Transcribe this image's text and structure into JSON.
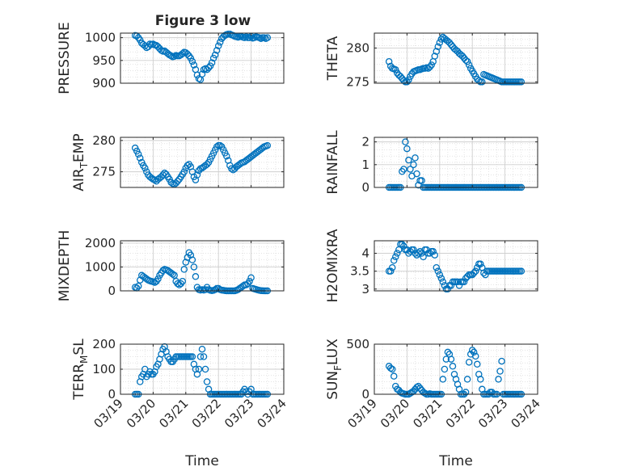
{
  "figure_title": "Figure 3 low",
  "x_axis": {
    "label": "Time",
    "tick_labels": [
      "03/19",
      "03/20",
      "03/21",
      "03/22",
      "03/23",
      "03/24"
    ]
  },
  "colors": {
    "marker": "#0072BD",
    "axis": "#262626",
    "grid": "#dadada"
  },
  "chart_data": [
    {
      "type": "scatter",
      "ylabel": "PRESSURE",
      "ylim": [
        900,
        1010
      ],
      "yticks": [
        900,
        950,
        1000
      ],
      "x": [
        0.45,
        0.5,
        0.55,
        0.6,
        0.65,
        0.7,
        0.75,
        0.8,
        0.85,
        0.9,
        0.95,
        1.0,
        1.05,
        1.1,
        1.15,
        1.2,
        1.25,
        1.3,
        1.35,
        1.4,
        1.45,
        1.5,
        1.55,
        1.6,
        1.65,
        1.7,
        1.75,
        1.8,
        1.85,
        1.9,
        1.95,
        2.0,
        2.05,
        2.1,
        2.15,
        2.2,
        2.25,
        2.3,
        2.35,
        2.4,
        2.45,
        2.5,
        2.55,
        2.6,
        2.65,
        2.7,
        2.75,
        2.8,
        2.85,
        2.9,
        2.95,
        3.0,
        3.05,
        3.1,
        3.15,
        3.2,
        3.25,
        3.3,
        3.35,
        3.4,
        3.45,
        3.5,
        3.55,
        3.6,
        3.65,
        3.7,
        3.75,
        3.8,
        3.85,
        3.9,
        3.95,
        4.0,
        4.05,
        4.1,
        4.15,
        4.2,
        4.25,
        4.3,
        4.35,
        4.4,
        4.45,
        4.5
      ],
      "y": [
        1005,
        1004,
        1000,
        995,
        988,
        985,
        982,
        978,
        980,
        986,
        985,
        986,
        984,
        983,
        980,
        976,
        972,
        970,
        971,
        968,
        965,
        962,
        960,
        958,
        959,
        961,
        960,
        960,
        962,
        965,
        968,
        967,
        964,
        960,
        955,
        948,
        940,
        930,
        918,
        910,
        908,
        920,
        930,
        932,
        930,
        934,
        938,
        945,
        955,
        962,
        972,
        982,
        990,
        998,
        1002,
        1005,
        1007,
        1008,
        1008,
        1006,
        1005,
        1003,
        1002,
        1001,
        1002,
        1003,
        1001,
        1000,
        1002,
        1000,
        1000,
        1003,
        999,
        1000,
        1002,
        1001,
        1000,
        998,
        1000,
        1000,
        998,
        1000
      ]
    },
    {
      "type": "scatter",
      "ylabel": "THETA",
      "ylim": [
        274.8,
        282.2
      ],
      "yticks": [
        275,
        280
      ],
      "x": [
        0.45,
        0.5,
        0.55,
        0.6,
        0.65,
        0.7,
        0.75,
        0.8,
        0.85,
        0.9,
        0.95,
        1.0,
        1.05,
        1.1,
        1.15,
        1.2,
        1.25,
        1.3,
        1.35,
        1.4,
        1.45,
        1.5,
        1.55,
        1.6,
        1.65,
        1.7,
        1.75,
        1.8,
        1.85,
        1.9,
        1.95,
        2.0,
        2.05,
        2.1,
        2.15,
        2.2,
        2.25,
        2.3,
        2.35,
        2.4,
        2.45,
        2.5,
        2.55,
        2.6,
        2.65,
        2.7,
        2.75,
        2.8,
        2.85,
        2.9,
        2.95,
        3.0,
        3.05,
        3.1,
        3.15,
        3.2,
        3.25,
        3.3,
        3.35,
        3.4,
        3.45,
        3.5,
        3.55,
        3.6,
        3.65,
        3.7,
        3.75,
        3.8,
        3.85,
        3.9,
        3.95,
        4.0,
        4.05,
        4.1,
        4.15,
        4.2,
        4.25,
        4.3,
        4.35,
        4.4,
        4.45,
        4.5
      ],
      "y": [
        278,
        277.3,
        277,
        276.9,
        276.8,
        276.3,
        276,
        275.8,
        275.5,
        275.2,
        275,
        275,
        275.3,
        275.8,
        276.2,
        276.5,
        276.6,
        276.7,
        276.8,
        276.8,
        276.9,
        277,
        277,
        277.1,
        277,
        277.2,
        277.5,
        278,
        278.8,
        279.5,
        280.2,
        280.8,
        281.3,
        281.6,
        281.4,
        281.2,
        281,
        280.8,
        280.5,
        280.2,
        279.9,
        279.7,
        279.5,
        279.2,
        279,
        278.8,
        278.5,
        278.2,
        278,
        277.5,
        277,
        276.6,
        276.2,
        275.8,
        275.4,
        275.2,
        275,
        275,
        276.1,
        276,
        275.9,
        275.8,
        275.7,
        275.6,
        275.5,
        275.4,
        275.3,
        275.2,
        275.1,
        275,
        275,
        275,
        275,
        275,
        275,
        275,
        275,
        275,
        275,
        275,
        275,
        275
      ]
    },
    {
      "type": "scatter",
      "ylabel_main": "AIR",
      "ylabel_sub": "T",
      "ylabel_rest": "EMP",
      "ylim": [
        272.5,
        280.5
      ],
      "yticks": [
        275,
        280
      ],
      "x": [
        0.45,
        0.5,
        0.55,
        0.6,
        0.65,
        0.7,
        0.75,
        0.8,
        0.85,
        0.9,
        0.95,
        1.0,
        1.05,
        1.1,
        1.15,
        1.2,
        1.25,
        1.3,
        1.35,
        1.4,
        1.45,
        1.5,
        1.55,
        1.6,
        1.65,
        1.7,
        1.75,
        1.8,
        1.85,
        1.9,
        1.95,
        2.0,
        2.05,
        2.1,
        2.15,
        2.2,
        2.25,
        2.3,
        2.35,
        2.4,
        2.45,
        2.5,
        2.55,
        2.6,
        2.65,
        2.7,
        2.75,
        2.8,
        2.85,
        2.9,
        2.95,
        3.0,
        3.05,
        3.1,
        3.15,
        3.2,
        3.25,
        3.3,
        3.35,
        3.4,
        3.45,
        3.5,
        3.55,
        3.6,
        3.65,
        3.7,
        3.75,
        3.8,
        3.85,
        3.9,
        3.95,
        4.0,
        4.05,
        4.1,
        4.15,
        4.2,
        4.25,
        4.3,
        4.35,
        4.4,
        4.45,
        4.5
      ],
      "y": [
        278.8,
        278.3,
        277.8,
        277.2,
        276.5,
        276,
        275.6,
        275,
        274.5,
        274.2,
        274,
        273.8,
        273.7,
        273.5,
        273.8,
        274,
        274.2,
        274.5,
        274.8,
        274.6,
        274.2,
        273.8,
        273.3,
        273.1,
        273,
        273.2,
        273.5,
        273.8,
        274.2,
        274.6,
        275,
        275.6,
        276,
        276.2,
        275.8,
        275,
        274.2,
        273.7,
        274.5,
        275.2,
        275.5,
        275.6,
        275.8,
        276,
        276.2,
        276.5,
        277,
        277.5,
        278,
        278.5,
        279,
        279.2,
        279.2,
        279,
        278.5,
        278,
        277.5,
        276.8,
        276,
        275.5,
        275.3,
        275.5,
        275.8,
        276,
        276.2,
        276.4,
        276.5,
        276.6,
        276.8,
        277,
        277.2,
        277.4,
        277.6,
        277.8,
        278,
        278.2,
        278.4,
        278.6,
        278.8,
        279,
        279.1,
        279.2
      ]
    },
    {
      "type": "scatter",
      "ylabel": "RAINFALL",
      "ylim": [
        0,
        2.2
      ],
      "yticks": [
        0,
        1,
        2
      ],
      "x": [
        0.45,
        0.5,
        0.55,
        0.6,
        0.65,
        0.7,
        0.75,
        0.8,
        0.85,
        0.9,
        0.95,
        1.0,
        1.05,
        1.1,
        1.15,
        1.2,
        1.25,
        1.3,
        1.35,
        1.4,
        1.45,
        1.5,
        1.55,
        1.6,
        1.65,
        1.7,
        1.75,
        1.8,
        1.85,
        1.9,
        1.95,
        2.0,
        2.05,
        2.1,
        2.15,
        2.2,
        2.25,
        2.3,
        2.35,
        2.4,
        2.45,
        2.5,
        2.55,
        2.6,
        2.65,
        2.7,
        2.75,
        2.8,
        2.85,
        2.9,
        2.95,
        3.0,
        3.05,
        3.1,
        3.15,
        3.2,
        3.25,
        3.3,
        3.35,
        3.4,
        3.45,
        3.5,
        3.55,
        3.6,
        3.65,
        3.7,
        3.75,
        3.8,
        3.85,
        3.9,
        3.95,
        4.0,
        4.05,
        4.1,
        4.15,
        4.2,
        4.25,
        4.3,
        4.35,
        4.4,
        4.45,
        4.5
      ],
      "y": [
        0,
        0,
        0,
        0,
        0,
        0,
        0,
        0,
        0.7,
        0.8,
        2.0,
        1.7,
        1.2,
        0.8,
        0.5,
        1.0,
        1.3,
        0.6,
        0.1,
        0.3,
        0.3,
        0,
        0,
        0,
        0,
        0,
        0,
        0,
        0,
        0,
        0,
        0,
        0,
        0,
        0,
        0,
        0,
        0,
        0,
        0,
        0,
        0,
        0,
        0,
        0,
        0,
        0,
        0,
        0,
        0,
        0,
        0,
        0,
        0,
        0,
        0,
        0,
        0,
        0,
        0,
        0,
        0,
        0,
        0,
        0,
        0,
        0,
        0,
        0,
        0,
        0,
        0,
        0,
        0,
        0,
        0,
        0,
        0,
        0,
        0,
        0,
        0
      ]
    },
    {
      "type": "scatter",
      "ylabel": "MIXDEPTH",
      "ylim": [
        0,
        2100
      ],
      "yticks": [
        0,
        1000,
        2000
      ],
      "x": [
        0.45,
        0.5,
        0.55,
        0.6,
        0.65,
        0.7,
        0.75,
        0.8,
        0.85,
        0.9,
        0.95,
        1.0,
        1.05,
        1.1,
        1.15,
        1.2,
        1.25,
        1.3,
        1.35,
        1.4,
        1.45,
        1.5,
        1.55,
        1.6,
        1.65,
        1.7,
        1.75,
        1.8,
        1.85,
        1.9,
        1.95,
        2.0,
        2.05,
        2.1,
        2.15,
        2.2,
        2.25,
        2.3,
        2.35,
        2.4,
        2.45,
        2.5,
        2.55,
        2.6,
        2.65,
        2.7,
        2.75,
        2.8,
        2.85,
        2.9,
        2.95,
        3.0,
        3.05,
        3.1,
        3.15,
        3.2,
        3.25,
        3.3,
        3.35,
        3.4,
        3.45,
        3.5,
        3.55,
        3.6,
        3.65,
        3.7,
        3.75,
        3.8,
        3.85,
        3.9,
        3.95,
        4.0,
        4.05,
        4.1,
        4.15,
        4.2,
        4.25,
        4.3,
        4.35,
        4.4,
        4.45,
        4.5
      ],
      "y": [
        150,
        120,
        200,
        450,
        650,
        600,
        550,
        500,
        450,
        420,
        400,
        380,
        350,
        400,
        500,
        650,
        750,
        850,
        900,
        880,
        850,
        800,
        750,
        700,
        650,
        400,
        300,
        250,
        300,
        400,
        900,
        1200,
        1400,
        1600,
        1500,
        1300,
        1000,
        600,
        150,
        50,
        30,
        50,
        30,
        50,
        150,
        50,
        20,
        10,
        20,
        50,
        100,
        100,
        50,
        30,
        20,
        10,
        0,
        0,
        0,
        0,
        0,
        0,
        20,
        50,
        100,
        150,
        200,
        250,
        250,
        300,
        400,
        550,
        100,
        80,
        60,
        40,
        20,
        10,
        5,
        0,
        0,
        0
      ]
    },
    {
      "type": "scatter",
      "ylabel": "H2OMIXRA",
      "ylim": [
        2.95,
        4.35
      ],
      "yticks": [
        3,
        3.5,
        4
      ],
      "x": [
        0.45,
        0.5,
        0.55,
        0.6,
        0.65,
        0.7,
        0.75,
        0.8,
        0.85,
        0.9,
        0.95,
        1.0,
        1.05,
        1.1,
        1.15,
        1.2,
        1.25,
        1.3,
        1.35,
        1.4,
        1.45,
        1.5,
        1.55,
        1.6,
        1.65,
        1.7,
        1.75,
        1.8,
        1.85,
        1.9,
        1.95,
        2.0,
        2.05,
        2.1,
        2.15,
        2.2,
        2.25,
        2.3,
        2.35,
        2.4,
        2.45,
        2.5,
        2.55,
        2.6,
        2.65,
        2.7,
        2.75,
        2.8,
        2.85,
        2.9,
        2.95,
        3.0,
        3.05,
        3.1,
        3.15,
        3.2,
        3.25,
        3.3,
        3.35,
        3.4,
        3.45,
        3.5,
        3.55,
        3.6,
        3.65,
        3.7,
        3.75,
        3.8,
        3.85,
        3.9,
        3.95,
        4.0,
        4.05,
        4.1,
        4.15,
        4.2,
        4.25,
        4.3,
        4.35,
        4.4,
        4.45,
        4.5
      ],
      "y": [
        3.5,
        3.5,
        3.6,
        3.8,
        3.9,
        4.0,
        4.1,
        4.25,
        4.25,
        4.2,
        4.1,
        4.1,
        4.0,
        4.05,
        4.1,
        4.1,
        4.0,
        3.95,
        4.0,
        4.05,
        4.0,
        3.9,
        4.1,
        4.1,
        4.0,
        4.0,
        4.05,
        4.05,
        3.95,
        3.6,
        3.5,
        3.4,
        3.3,
        3.2,
        3.1,
        3.0,
        3.0,
        3.1,
        3.1,
        3.2,
        3.2,
        3.2,
        3.2,
        3.1,
        3.2,
        3.2,
        3.2,
        3.3,
        3.35,
        3.4,
        3.4,
        3.4,
        3.45,
        3.5,
        3.6,
        3.7,
        3.7,
        3.6,
        3.45,
        3.4,
        3.5,
        3.5,
        3.5,
        3.5,
        3.5,
        3.5,
        3.5,
        3.5,
        3.5,
        3.5,
        3.5,
        3.5,
        3.5,
        3.5,
        3.5,
        3.5,
        3.5,
        3.5,
        3.5,
        3.5,
        3.5,
        3.5
      ]
    },
    {
      "type": "scatter",
      "ylabel_main": "TERR",
      "ylabel_sub": "M",
      "ylabel_rest": "SL",
      "ylim": [
        0,
        200
      ],
      "yticks": [
        0,
        100,
        200
      ],
      "x": [
        0.45,
        0.5,
        0.55,
        0.6,
        0.65,
        0.7,
        0.75,
        0.8,
        0.85,
        0.9,
        0.95,
        1.0,
        1.05,
        1.1,
        1.15,
        1.2,
        1.25,
        1.3,
        1.35,
        1.4,
        1.45,
        1.5,
        1.55,
        1.6,
        1.65,
        1.7,
        1.75,
        1.8,
        1.85,
        1.9,
        1.95,
        2.0,
        2.05,
        2.1,
        2.15,
        2.2,
        2.25,
        2.3,
        2.35,
        2.4,
        2.45,
        2.5,
        2.55,
        2.6,
        2.65,
        2.7,
        2.75,
        2.8,
        2.85,
        2.9,
        2.95,
        3.0,
        3.05,
        3.1,
        3.15,
        3.2,
        3.25,
        3.3,
        3.35,
        3.4,
        3.45,
        3.5,
        3.55,
        3.6,
        3.65,
        3.7,
        3.75,
        3.8,
        3.85,
        3.9,
        3.95,
        4.0,
        4.05,
        4.1,
        4.15,
        4.2,
        4.25,
        4.3,
        4.35,
        4.4,
        4.45,
        4.5
      ],
      "y": [
        0,
        0,
        0,
        50,
        70,
        80,
        100,
        70,
        80,
        90,
        80,
        80,
        90,
        110,
        120,
        140,
        160,
        180,
        190,
        170,
        150,
        140,
        130,
        130,
        140,
        150,
        150,
        150,
        150,
        150,
        150,
        150,
        150,
        150,
        150,
        150,
        120,
        100,
        80,
        100,
        150,
        180,
        150,
        100,
        50,
        20,
        0,
        0,
        0,
        0,
        0,
        0,
        0,
        0,
        0,
        0,
        0,
        0,
        0,
        0,
        0,
        0,
        0,
        0,
        0,
        0,
        10,
        20,
        10,
        0,
        10,
        20,
        0,
        0,
        0,
        0,
        0,
        0,
        0,
        0,
        0,
        0
      ]
    },
    {
      "type": "scatter",
      "ylabel_main": "SUN",
      "ylabel_sub": "F",
      "ylabel_rest": "LUX",
      "ylim": [
        0,
        500
      ],
      "yticks": [
        0,
        500
      ],
      "x": [
        0.45,
        0.5,
        0.55,
        0.6,
        0.65,
        0.7,
        0.75,
        0.8,
        0.85,
        0.9,
        0.95,
        1.0,
        1.05,
        1.1,
        1.15,
        1.2,
        1.25,
        1.3,
        1.35,
        1.4,
        1.45,
        1.5,
        1.55,
        1.6,
        1.65,
        1.7,
        1.75,
        1.8,
        1.85,
        1.9,
        1.95,
        2.0,
        2.05,
        2.1,
        2.15,
        2.2,
        2.25,
        2.3,
        2.35,
        2.4,
        2.45,
        2.5,
        2.55,
        2.6,
        2.65,
        2.7,
        2.75,
        2.8,
        2.85,
        2.9,
        2.95,
        3.0,
        3.05,
        3.1,
        3.15,
        3.2,
        3.25,
        3.3,
        3.35,
        3.4,
        3.45,
        3.5,
        3.55,
        3.6,
        3.65,
        3.7,
        3.75,
        3.8,
        3.85,
        3.9,
        3.95,
        4.0,
        4.05,
        4.1,
        4.15,
        4.2,
        4.25,
        4.3,
        4.35,
        4.4,
        4.45,
        4.5
      ],
      "y": [
        280,
        260,
        250,
        180,
        80,
        50,
        40,
        20,
        10,
        5,
        0,
        0,
        0,
        10,
        20,
        30,
        50,
        70,
        80,
        60,
        40,
        20,
        10,
        0,
        0,
        5,
        0,
        0,
        0,
        0,
        0,
        0,
        0,
        150,
        250,
        350,
        420,
        400,
        350,
        280,
        200,
        150,
        100,
        50,
        0,
        0,
        0,
        20,
        150,
        320,
        400,
        440,
        420,
        380,
        300,
        200,
        150,
        50,
        0,
        0,
        0,
        0,
        20,
        20,
        0,
        0,
        0,
        150,
        230,
        330,
        0,
        0,
        0,
        0,
        0,
        0,
        0,
        0,
        0,
        0,
        0,
        0
      ]
    }
  ]
}
